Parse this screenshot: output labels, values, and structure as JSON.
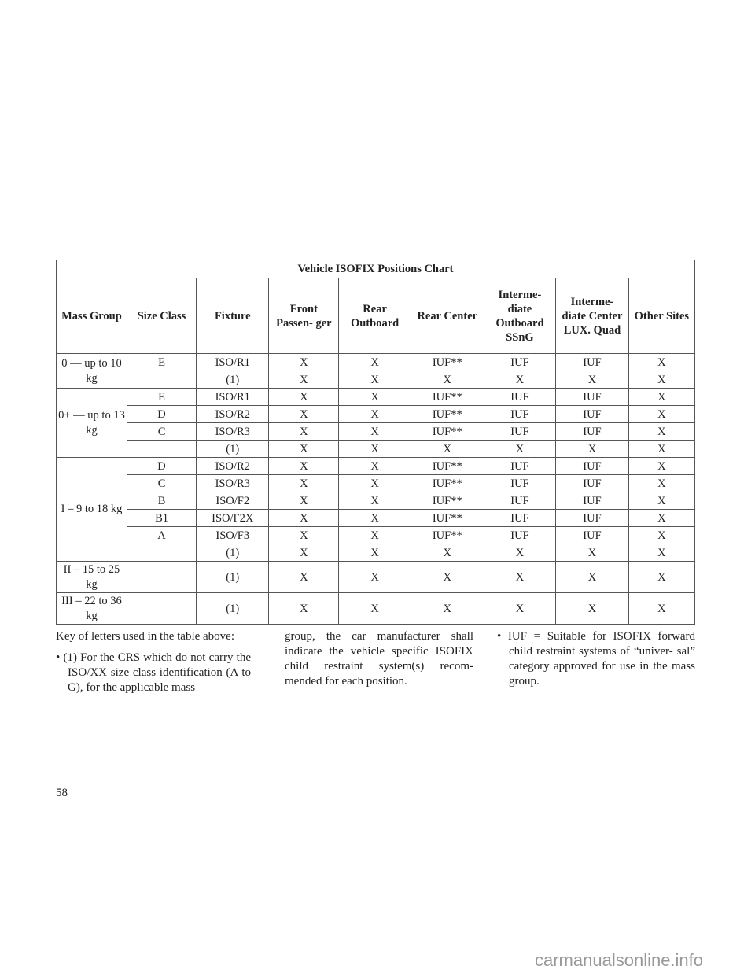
{
  "table": {
    "title": "Vehicle ISOFIX Positions Chart",
    "headers": [
      "Mass Group",
      "Size Class",
      "Fixture",
      "Front Passen- ger",
      "Rear Outboard",
      "Rear Center",
      "Interme- diate Outboard SSnG",
      "Interme- diate Center LUX. Quad",
      "Other Sites"
    ],
    "groups": [
      {
        "mass": "0 — up to 10 kg",
        "rows": [
          [
            "E",
            "ISO/R1",
            "X",
            "X",
            "IUF**",
            "IUF",
            "IUF",
            "X"
          ],
          [
            "",
            "(1)",
            "X",
            "X",
            "X",
            "X",
            "X",
            "X"
          ]
        ]
      },
      {
        "mass": "0+ — up to 13 kg",
        "rows": [
          [
            "E",
            "ISO/R1",
            "X",
            "X",
            "IUF**",
            "IUF",
            "IUF",
            "X"
          ],
          [
            "D",
            "ISO/R2",
            "X",
            "X",
            "IUF**",
            "IUF",
            "IUF",
            "X"
          ],
          [
            "C",
            "ISO/R3",
            "X",
            "X",
            "IUF**",
            "IUF",
            "IUF",
            "X"
          ],
          [
            "",
            "(1)",
            "X",
            "X",
            "X",
            "X",
            "X",
            "X"
          ]
        ]
      },
      {
        "mass": "I – 9 to 18 kg",
        "rows": [
          [
            "D",
            "ISO/R2",
            "X",
            "X",
            "IUF**",
            "IUF",
            "IUF",
            "X"
          ],
          [
            "C",
            "ISO/R3",
            "X",
            "X",
            "IUF**",
            "IUF",
            "IUF",
            "X"
          ],
          [
            "B",
            "ISO/F2",
            "X",
            "X",
            "IUF**",
            "IUF",
            "IUF",
            "X"
          ],
          [
            "B1",
            "ISO/F2X",
            "X",
            "X",
            "IUF**",
            "IUF",
            "IUF",
            "X"
          ],
          [
            "A",
            "ISO/F3",
            "X",
            "X",
            "IUF**",
            "IUF",
            "IUF",
            "X"
          ],
          [
            "",
            "(1)",
            "X",
            "X",
            "X",
            "X",
            "X",
            "X"
          ]
        ]
      },
      {
        "mass": "II – 15 to 25 kg",
        "rows": [
          [
            "",
            "(1)",
            "X",
            "X",
            "X",
            "X",
            "X",
            "X"
          ]
        ]
      },
      {
        "mass": "III – 22 to 36 kg",
        "rows": [
          [
            "",
            "(1)",
            "X",
            "X",
            "X",
            "X",
            "X",
            "X"
          ]
        ]
      }
    ]
  },
  "text": {
    "key": "Key of letters used in the table above:",
    "note1_a": "(1) For the CRS which do not carry the ISO/XX size class identification (A to G), for the applicable mass",
    "note1_b": "group, the car manufacturer shall indicate the vehicle specific ISOFIX child restraint system(s) recom- mended for each position.",
    "note2": "IUF = Suitable for ISOFIX forward child restraint systems of “univer- sal” category approved for use in the mass group."
  },
  "page_number": "58",
  "watermark": "carmanualsonline.info"
}
